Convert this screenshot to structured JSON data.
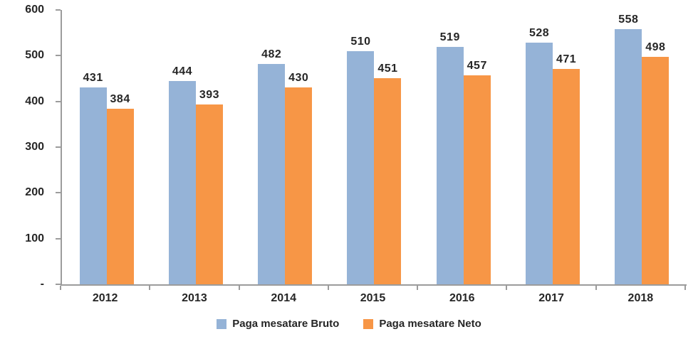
{
  "chart_data": {
    "type": "bar",
    "title": "",
    "xlabel": "",
    "ylabel": "",
    "categories": [
      "2012",
      "2013",
      "2014",
      "2015",
      "2016",
      "2017",
      "2018"
    ],
    "series": [
      {
        "name": "Paga mesatare Bruto",
        "color": "#95B3D7",
        "values": [
          431,
          444,
          482,
          510,
          519,
          528,
          558
        ]
      },
      {
        "name": "Paga mesatare Neto",
        "color": "#F79646",
        "values": [
          384,
          393,
          430,
          451,
          457,
          471,
          498
        ]
      }
    ],
    "ylim": [
      0,
      600
    ],
    "y_ticks": [
      {
        "value": 600,
        "label": "600"
      },
      {
        "value": 500,
        "label": "500"
      },
      {
        "value": 400,
        "label": "400"
      },
      {
        "value": 300,
        "label": "300"
      },
      {
        "value": 200,
        "label": "200"
      },
      {
        "value": 100,
        "label": "100"
      },
      {
        "value": 0,
        "label": "-"
      }
    ],
    "grid": false,
    "legend_position": "bottom",
    "data_labels": true,
    "colors": {
      "axis": "#9c9c9c",
      "text": "#262626",
      "background": "#ffffff"
    }
  }
}
